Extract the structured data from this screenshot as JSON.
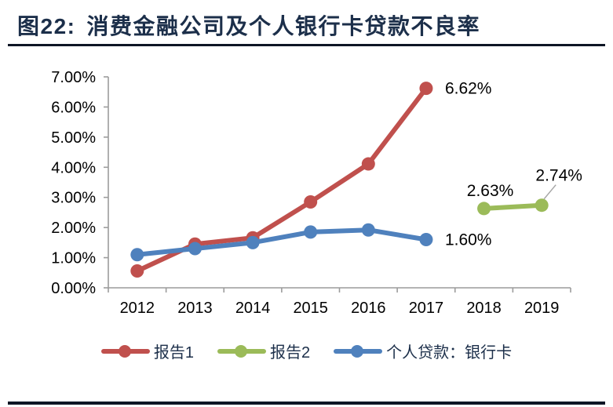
{
  "figure": {
    "title_label": "图22:",
    "title_text": "消费金融公司及个人银行卡贷款不良率"
  },
  "chart_data": {
    "type": "line",
    "title": "消费金融公司及个人银行卡贷款不良率",
    "categories": [
      "2012",
      "2013",
      "2014",
      "2015",
      "2016",
      "2017",
      "2018",
      "2019"
    ],
    "y_ticks": [
      "0.00%",
      "1.00%",
      "2.00%",
      "3.00%",
      "4.00%",
      "5.00%",
      "6.00%",
      "7.00%"
    ],
    "ylim": [
      0,
      7
    ],
    "grid": false,
    "legend_position": "bottom",
    "series": [
      {
        "name": "报告1",
        "color": "#C0504D",
        "x": [
          "2012",
          "2013",
          "2014",
          "2015",
          "2016",
          "2017"
        ],
        "values": [
          0.56,
          1.45,
          1.66,
          2.85,
          4.11,
          6.62
        ]
      },
      {
        "name": "报告2",
        "color": "#9BBB59",
        "x": [
          "2018",
          "2019"
        ],
        "values": [
          2.63,
          2.74
        ]
      },
      {
        "name": "个人贷款：银行卡",
        "color": "#4F81BD",
        "x": [
          "2012",
          "2013",
          "2014",
          "2015",
          "2016",
          "2017"
        ],
        "values": [
          1.1,
          1.3,
          1.5,
          1.85,
          1.92,
          1.6
        ]
      }
    ],
    "data_labels": [
      {
        "text": "6.62%",
        "series": "报告1",
        "category": "2017"
      },
      {
        "text": "2.63%",
        "series": "报告2",
        "category": "2018"
      },
      {
        "text": "2.74%",
        "series": "报告2",
        "category": "2019"
      },
      {
        "text": "1.60%",
        "series": "个人贷款：银行卡",
        "category": "2017"
      }
    ],
    "colors": {
      "axis": "#9C9C9C",
      "tick_label": "#000000",
      "data_label": "#000000",
      "title": "#1C2F4A",
      "rule": "#0E1625",
      "leader_line": "#A6A6A6"
    }
  }
}
